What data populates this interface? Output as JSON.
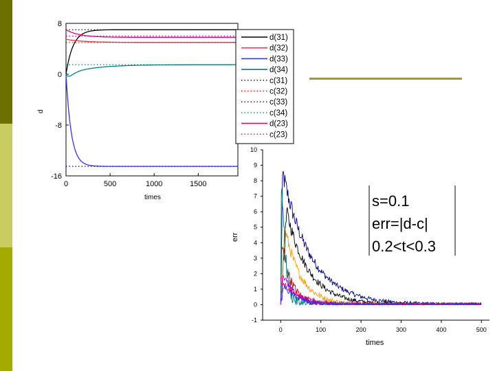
{
  "theme": {
    "stripe_colors": [
      "#6b7000",
      "#c9cc60",
      "#a3aa00"
    ],
    "accent_line": "#a79a1d"
  },
  "chart_data": [
    {
      "type": "line",
      "xlabel": "times",
      "ylabel": "d",
      "xlim": [
        0,
        1950
      ],
      "ylim": [
        -16,
        8
      ],
      "xticks": [
        0,
        500,
        1000,
        1500
      ],
      "yticks": [
        8,
        0,
        -8,
        -16
      ],
      "grid": false,
      "legend_position": "right",
      "series": [
        {
          "name": "d(31)",
          "color": "#000000",
          "style": "solid",
          "final": 7.0,
          "start": 0.0,
          "overshoot": 0.0,
          "tau": 80
        },
        {
          "name": "d(32)",
          "color": "#ff3030",
          "style": "solid",
          "final": 5.0,
          "start": 5.5,
          "overshoot": 0.0,
          "tau": 200
        },
        {
          "name": "d(33)",
          "color": "#3030ff",
          "style": "solid",
          "final": -14.5,
          "start": 0.0,
          "overshoot": 0.0,
          "tau": 60
        },
        {
          "name": "d(34)",
          "color": "#008080",
          "style": "solid",
          "final": 1.5,
          "start": 0.0,
          "overshoot": 0.5,
          "tau": 300
        },
        {
          "name": "c(31)",
          "color": "#000000",
          "style": "dotted",
          "final": 7.0
        },
        {
          "name": "c(32)",
          "color": "#ff0000",
          "style": "dotted",
          "final": 5.0
        },
        {
          "name": "c(33)",
          "color": "#0000cc",
          "style": "dotted",
          "final": -14.5
        },
        {
          "name": "c(34)",
          "color": "#008080",
          "style": "dotted",
          "final": 1.5
        },
        {
          "name": "d(23)",
          "color": "#e0006e",
          "style": "solid",
          "final": 5.8,
          "start": 7.0,
          "overshoot": 0.0,
          "tau": 150
        },
        {
          "name": "c(23)",
          "color": "#cc00aa",
          "style": "dotted",
          "final": 6.0
        }
      ]
    },
    {
      "type": "line",
      "xlabel": "times",
      "ylabel": "err",
      "xlim": [
        -45,
        520
      ],
      "ylim": [
        -1,
        10
      ],
      "xticks": [
        0,
        100,
        200,
        300,
        400,
        500
      ],
      "yticks": [
        10,
        9,
        8,
        7,
        6,
        5,
        4,
        3,
        2,
        1,
        0,
        -1
      ],
      "grid": false,
      "series": [
        {
          "color": "#000080",
          "peak": 8.5,
          "tau": 70,
          "t0": 5
        },
        {
          "color": "#000000",
          "peak": 6.0,
          "tau": 55,
          "t0": 15
        },
        {
          "color": "#ff9900",
          "peak": 5.0,
          "tau": 40,
          "t0": 10
        },
        {
          "color": "#cc0000",
          "peak": 4.0,
          "tau": 25,
          "t0": 2
        },
        {
          "color": "#008080",
          "peak": 8.8,
          "tau": 10,
          "t0": 2
        },
        {
          "color": "#9900cc",
          "peak": 2.0,
          "tau": 30,
          "t0": 5
        },
        {
          "color": "#e0006e",
          "peak": 1.6,
          "tau": 45,
          "t0": 0
        },
        {
          "color": "#3030ff",
          "peak": 1.2,
          "tau": 35,
          "t0": 8
        }
      ]
    }
  ],
  "annotation": {
    "lines": [
      "s=0.1",
      "err=|d-c|",
      "0.2<t<0.3"
    ]
  }
}
